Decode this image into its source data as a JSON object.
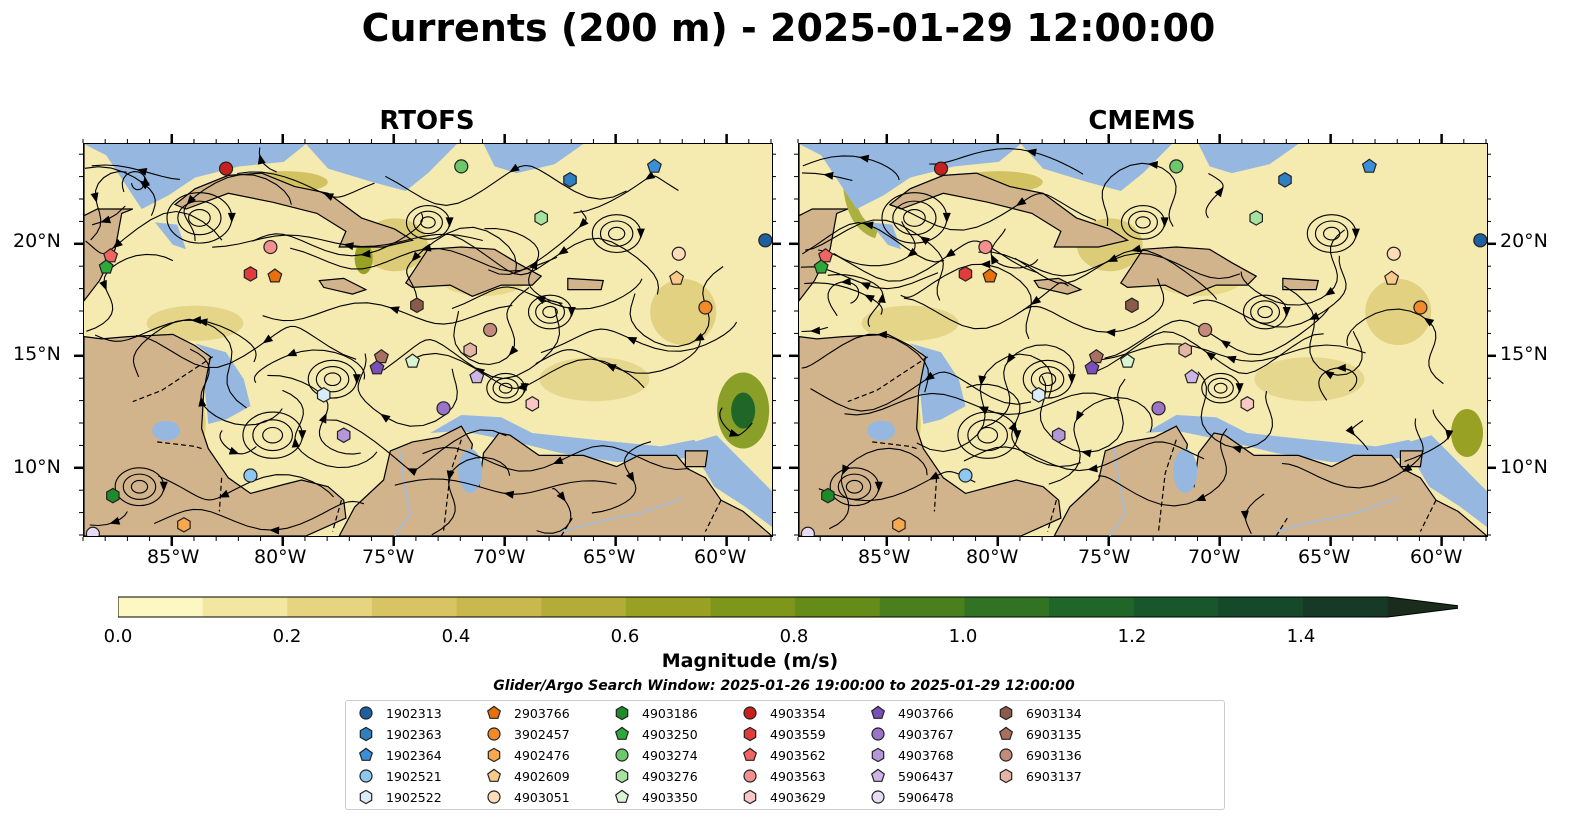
{
  "title": "Currents (200 m) - 2025-01-29 12:00:00",
  "panels": [
    {
      "title": "RTOFS"
    },
    {
      "title": "CMEMS"
    }
  ],
  "axes": {
    "lon_ticks": [
      "85°W",
      "80°W",
      "75°W",
      "70°W",
      "65°W",
      "60°W"
    ],
    "lat_ticks": [
      "20°N",
      "15°N",
      "10°N"
    ]
  },
  "map_extent": {
    "lon": [
      -89.0,
      -58.0
    ],
    "lat": [
      7.0,
      24.5
    ]
  },
  "colorbar": {
    "label": "Magnitude (m/s)",
    "ticks": [
      "0.0",
      "0.2",
      "0.4",
      "0.6",
      "0.8",
      "1.0",
      "1.2",
      "1.4"
    ],
    "range": [
      0.0,
      1.5
    ],
    "extend": "max",
    "colormap": "speed",
    "colors": [
      "#fdf7c2",
      "#f3e6a0",
      "#e6d47f",
      "#d9c464",
      "#c9b84d",
      "#b3ad38",
      "#98a124",
      "#7e971a",
      "#658b18",
      "#4b7f1e",
      "#327323",
      "#1f6628",
      "#17572b",
      "#16482a",
      "#163a25",
      "#1a2d1c"
    ]
  },
  "colors": {
    "land": "#d2b48c",
    "shallow": "#96b8e0",
    "ocean_low": "#fdf7c2"
  },
  "search_window": "Glider/Argo Search Window: 2025-01-26 19:00:00 to 2025-01-29 12:00:00",
  "legend": [
    {
      "id": "1902313",
      "marker": "circle",
      "color": "#1f5fa0"
    },
    {
      "id": "1902363",
      "marker": "hexagon",
      "color": "#2f7fc1"
    },
    {
      "id": "1902364",
      "marker": "pentagon",
      "color": "#3a8fd6"
    },
    {
      "id": "1902521",
      "marker": "circle",
      "color": "#8ec8f0"
    },
    {
      "id": "1902522",
      "marker": "hexagon",
      "color": "#d8ecfa"
    },
    {
      "id": "2903766",
      "marker": "pentagon",
      "color": "#e8700a"
    },
    {
      "id": "3902457",
      "marker": "circle",
      "color": "#f28a2a"
    },
    {
      "id": "4902476",
      "marker": "hexagon",
      "color": "#f8a84e"
    },
    {
      "id": "4902609",
      "marker": "pentagon",
      "color": "#fbc98a"
    },
    {
      "id": "4903051",
      "marker": "circle",
      "color": "#fddcb8"
    },
    {
      "id": "4903186",
      "marker": "hexagon",
      "color": "#1e8a2a"
    },
    {
      "id": "4903250",
      "marker": "pentagon",
      "color": "#2ea83a"
    },
    {
      "id": "4903274",
      "marker": "circle",
      "color": "#6cc86a"
    },
    {
      "id": "4903276",
      "marker": "hexagon",
      "color": "#a8e2a0"
    },
    {
      "id": "4903350",
      "marker": "pentagon",
      "color": "#daf5d4"
    },
    {
      "id": "4903354",
      "marker": "circle",
      "color": "#c8201e"
    },
    {
      "id": "4903559",
      "marker": "hexagon",
      "color": "#e03c3a"
    },
    {
      "id": "4903562",
      "marker": "pentagon",
      "color": "#f06462"
    },
    {
      "id": "4903563",
      "marker": "circle",
      "color": "#f49090"
    },
    {
      "id": "4903629",
      "marker": "hexagon",
      "color": "#fbc6c6"
    },
    {
      "id": "4903766",
      "marker": "pentagon",
      "color": "#7b4fb8"
    },
    {
      "id": "4903767",
      "marker": "circle",
      "color": "#9b74c8"
    },
    {
      "id": "4903768",
      "marker": "hexagon",
      "color": "#b596d8"
    },
    {
      "id": "5906437",
      "marker": "pentagon",
      "color": "#cdb5e6"
    },
    {
      "id": "5906478",
      "marker": "circle",
      "color": "#e8dcf4"
    },
    {
      "id": "6903134",
      "marker": "hexagon",
      "color": "#8c5a4a"
    },
    {
      "id": "6903135",
      "marker": "pentagon",
      "color": "#a87060"
    },
    {
      "id": "6903136",
      "marker": "circle",
      "color": "#c48a7a"
    },
    {
      "id": "6903137",
      "marker": "hexagon",
      "color": "#e4b4a4"
    }
  ],
  "floats": [
    {
      "id": "4903354",
      "lon": -82.6,
      "lat": 23.4
    },
    {
      "id": "4903274",
      "lon": -72.0,
      "lat": 23.5
    },
    {
      "id": "1902364",
      "lon": -63.3,
      "lat": 23.5
    },
    {
      "id": "1902363",
      "lon": -67.1,
      "lat": 22.9
    },
    {
      "id": "4903276",
      "lon": -68.4,
      "lat": 21.2
    },
    {
      "id": "4903562",
      "lon": -87.8,
      "lat": 19.5
    },
    {
      "id": "4903250",
      "lon": -88.0,
      "lat": 19.0
    },
    {
      "id": "4903563",
      "lon": -80.6,
      "lat": 19.9
    },
    {
      "id": "4903559",
      "lon": -81.5,
      "lat": 18.7
    },
    {
      "id": "2903766",
      "lon": -80.4,
      "lat": 18.6
    },
    {
      "id": "4903051",
      "lon": -62.2,
      "lat": 19.6
    },
    {
      "id": "4902609",
      "lon": -62.3,
      "lat": 18.5
    },
    {
      "id": "1902313",
      "lon": -58.3,
      "lat": 20.2
    },
    {
      "id": "3902457",
      "lon": -61.0,
      "lat": 17.2
    },
    {
      "id": "6903134",
      "lon": -74.0,
      "lat": 17.3
    },
    {
      "id": "6903136",
      "lon": -70.7,
      "lat": 16.2
    },
    {
      "id": "6903137",
      "lon": -71.6,
      "lat": 15.3
    },
    {
      "id": "6903135",
      "lon": -75.6,
      "lat": 15.0
    },
    {
      "id": "4903350",
      "lon": -74.2,
      "lat": 14.8
    },
    {
      "id": "4903766",
      "lon": -75.8,
      "lat": 14.5
    },
    {
      "id": "5906437",
      "lon": -71.3,
      "lat": 14.1
    },
    {
      "id": "1902522",
      "lon": -78.2,
      "lat": 13.3
    },
    {
      "id": "4903767",
      "lon": -72.8,
      "lat": 12.7
    },
    {
      "id": "4903629",
      "lon": -68.8,
      "lat": 12.9
    },
    {
      "id": "4903768",
      "lon": -77.3,
      "lat": 11.5
    },
    {
      "id": "1902521",
      "lon": -81.5,
      "lat": 9.7
    },
    {
      "id": "4903186",
      "lon": -87.7,
      "lat": 8.8
    },
    {
      "id": "4902476",
      "lon": -84.5,
      "lat": 7.5
    },
    {
      "id": "5906478",
      "lon": -88.6,
      "lat": 7.1
    }
  ]
}
